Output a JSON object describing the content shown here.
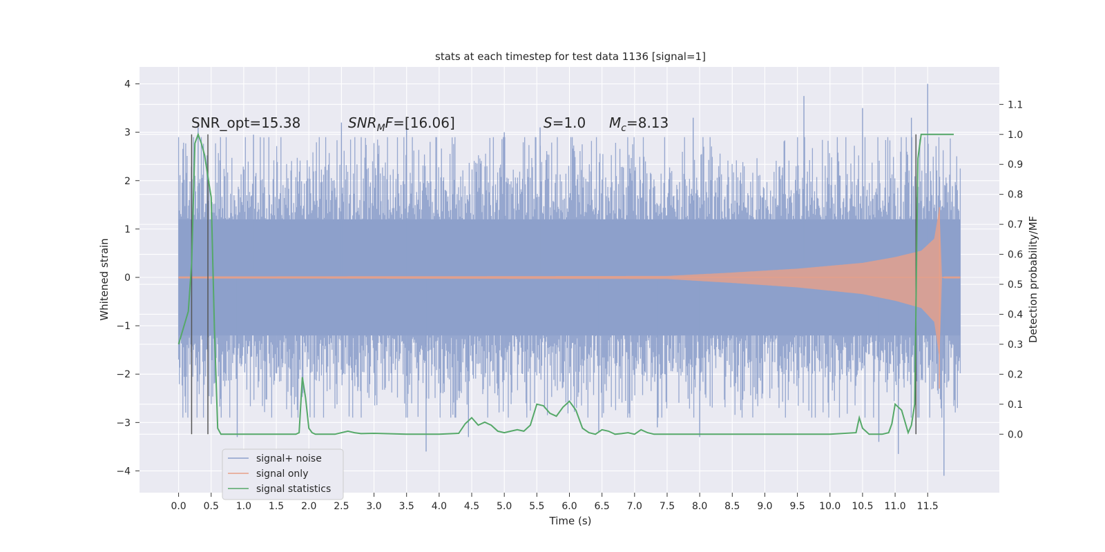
{
  "chart_data": {
    "type": "line",
    "title": "stats at each timestep for test data 1136 [signal=1]",
    "xlabel": "Time (s)",
    "ylabel": "Whitened strain",
    "ylabel_right": "Detection probability/MF",
    "xlim": [
      -0.6,
      12.6
    ],
    "ylim": [
      -4.45,
      4.35
    ],
    "ylim_right": [
      -0.195,
      1.225
    ],
    "grid": true,
    "legend_position": "lower-left",
    "x_ticks": [
      0.0,
      0.5,
      1.0,
      1.5,
      2.0,
      2.5,
      3.0,
      3.5,
      4.0,
      4.5,
      5.0,
      5.5,
      6.0,
      6.5,
      7.0,
      7.5,
      8.0,
      8.5,
      9.0,
      9.5,
      10.0,
      10.5,
      11.0,
      11.5
    ],
    "y_ticks": [
      -4,
      -3,
      -2,
      -1,
      0,
      1,
      2,
      3,
      4
    ],
    "y_ticks_right": [
      0.0,
      0.1,
      0.2,
      0.3,
      0.4,
      0.5,
      0.6,
      0.7,
      0.8,
      0.9,
      1.0,
      1.1
    ],
    "annotations": {
      "snr_opt": "SNR_opt=15.38",
      "snr_mf_main": "SNR",
      "snr_mf_sub": "M",
      "snr_mf_rest": "F=[16.06]",
      "s_var": "S",
      "s_value": "=1.0",
      "mc_var": "M",
      "mc_sub": "c",
      "mc_value": "=8.13"
    },
    "series": [
      {
        "name": "signal+ noise",
        "color": "#8da0cb",
        "x_range": [
          0.0,
          12.0
        ],
        "envelope": {
          "typical_abs": 1.5,
          "peaks": [
            [
              0.3,
              3.1
            ],
            [
              0.9,
              -3.3
            ],
            [
              1.15,
              2.95
            ],
            [
              2.5,
              3.2
            ],
            [
              3.5,
              3.1
            ],
            [
              3.8,
              -3.6
            ],
            [
              4.45,
              -3.3
            ],
            [
              5.0,
              3.0
            ],
            [
              5.55,
              3.1
            ],
            [
              6.45,
              -3.2
            ],
            [
              7.35,
              -3.1
            ],
            [
              7.9,
              3.3
            ],
            [
              8.0,
              -3.3
            ],
            [
              9.6,
              3.75
            ],
            [
              10.5,
              3.5
            ],
            [
              10.75,
              -3.4
            ],
            [
              11.05,
              -3.65
            ],
            [
              11.25,
              3.3
            ],
            [
              11.5,
              4.0
            ],
            [
              11.75,
              -4.1
            ]
          ]
        }
      },
      {
        "name": "signal only",
        "color": "#e8a088",
        "x": [
          0.0,
          7.5,
          8.5,
          9.5,
          10.5,
          11.0,
          11.4,
          11.6,
          11.68,
          11.72,
          11.75,
          12.0
        ],
        "amplitude": [
          0.02,
          0.03,
          0.1,
          0.18,
          0.3,
          0.42,
          0.55,
          0.8,
          1.45,
          0.0,
          0.02,
          0.02
        ]
      },
      {
        "name": "signal statistics",
        "color": "#55a868",
        "axis": "right",
        "x": [
          0.0,
          0.15,
          0.2,
          0.25,
          0.3,
          0.35,
          0.4,
          0.45,
          0.5,
          0.55,
          0.6,
          0.65,
          0.7,
          0.8,
          1.0,
          1.5,
          1.8,
          1.85,
          1.9,
          1.95,
          2.0,
          2.05,
          2.1,
          2.2,
          2.4,
          2.6,
          2.7,
          2.8,
          3.0,
          3.5,
          4.0,
          4.3,
          4.4,
          4.5,
          4.6,
          4.7,
          4.8,
          4.9,
          5.0,
          5.1,
          5.2,
          5.3,
          5.4,
          5.5,
          5.6,
          5.7,
          5.8,
          5.9,
          6.0,
          6.1,
          6.2,
          6.3,
          6.4,
          6.5,
          6.6,
          6.7,
          6.8,
          6.9,
          7.0,
          7.1,
          7.2,
          7.3,
          7.5,
          8.0,
          9.0,
          10.0,
          10.4,
          10.45,
          10.5,
          10.55,
          10.6,
          10.7,
          10.8,
          10.9,
          10.95,
          11.0,
          11.1,
          11.2,
          11.25,
          11.3,
          11.35,
          11.4,
          11.45,
          11.5,
          11.55,
          11.6,
          11.9
        ],
        "values": [
          0.3,
          0.41,
          0.57,
          0.97,
          1.0,
          0.97,
          0.93,
          0.86,
          0.79,
          0.35,
          0.02,
          0.0,
          0.0,
          0.0,
          0.0,
          0.0,
          0.0,
          0.005,
          0.19,
          0.12,
          0.02,
          0.005,
          0.0,
          0.0,
          0.0,
          0.01,
          0.005,
          0.002,
          0.003,
          0.0,
          0.0,
          0.003,
          0.035,
          0.055,
          0.03,
          0.04,
          0.03,
          0.01,
          0.005,
          0.01,
          0.015,
          0.01,
          0.03,
          0.1,
          0.095,
          0.07,
          0.06,
          0.09,
          0.11,
          0.08,
          0.02,
          0.005,
          0.0,
          0.015,
          0.01,
          0.0,
          0.002,
          0.005,
          0.0,
          0.015,
          0.005,
          0.0,
          0.0,
          0.0,
          0.0,
          0.0,
          0.005,
          0.055,
          0.02,
          0.01,
          0.0,
          0.0,
          0.0,
          0.005,
          0.035,
          0.1,
          0.08,
          0.005,
          0.03,
          0.1,
          0.92,
          1.0,
          1.0,
          1.0,
          1.0,
          1.0,
          1.0
        ]
      }
    ],
    "vertical_markers_x": [
      0.2,
      0.45,
      11.32
    ],
    "vertical_markers_color": "#555555"
  }
}
